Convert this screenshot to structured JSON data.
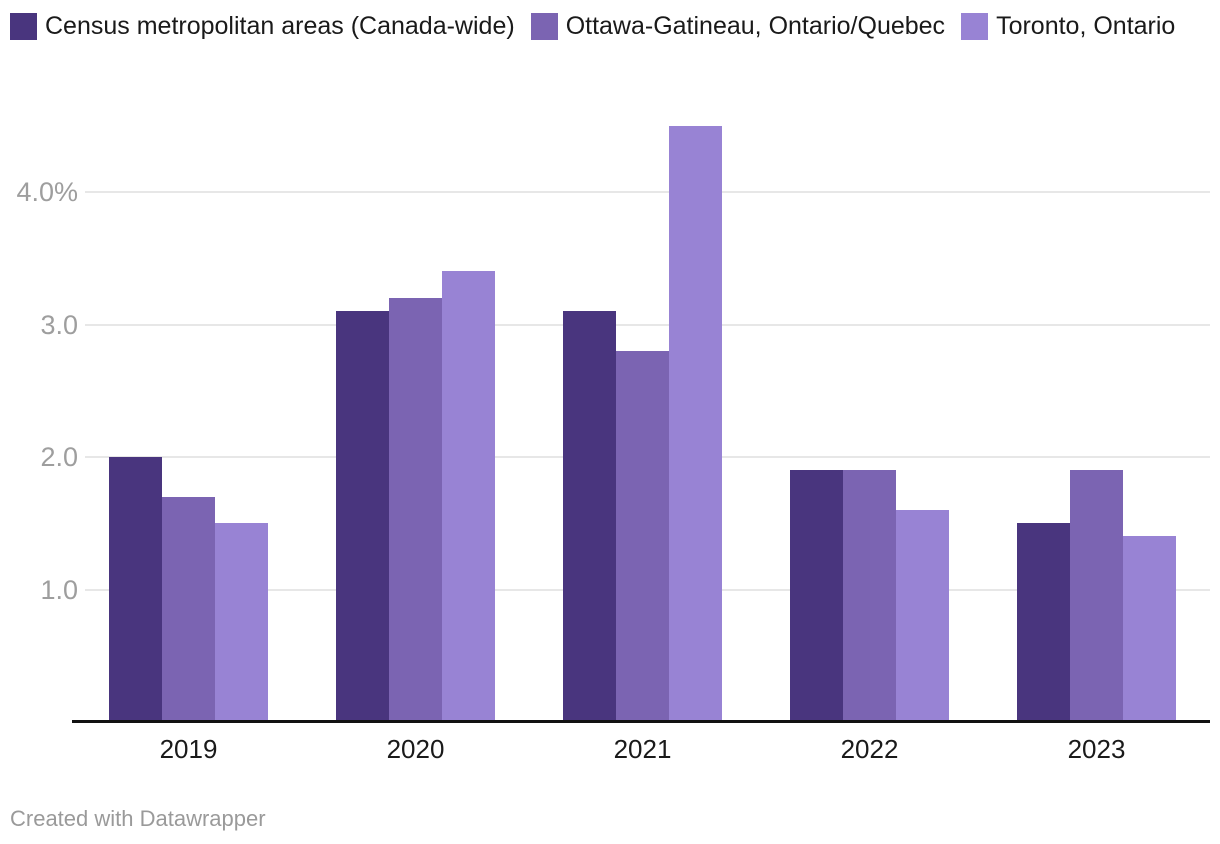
{
  "chart_data": {
    "type": "bar",
    "title": "",
    "categories": [
      "2019",
      "2020",
      "2021",
      "2022",
      "2023"
    ],
    "series": [
      {
        "name": "Census metropolitan areas (Canada-wide)",
        "color": "#49357e",
        "values": [
          2.0,
          3.1,
          3.1,
          1.9,
          1.5
        ]
      },
      {
        "name": "Ottawa-Gatineau, Ontario/Quebec",
        "color": "#7b64b2",
        "values": [
          1.7,
          3.2,
          2.8,
          1.9,
          1.9
        ]
      },
      {
        "name": "Toronto, Ontario",
        "color": "#9883d4",
        "values": [
          1.5,
          3.4,
          4.5,
          1.6,
          1.4
        ]
      }
    ],
    "xlabel": "",
    "ylabel": "",
    "ylim": [
      0,
      4.5
    ],
    "yticks": [
      {
        "value": 1,
        "label": "1.0"
      },
      {
        "value": 2,
        "label": "2.0"
      },
      {
        "value": 3,
        "label": "3.0"
      },
      {
        "value": 4,
        "label": "4.0%"
      }
    ],
    "grid": true,
    "legend_position": "top"
  },
  "footer": {
    "credit": "Created with Datawrapper"
  },
  "colors": {
    "axis_line": "#121212",
    "gridline": "#e7e7e7",
    "tick_label": "#9e9e9e",
    "category_label": "#1a1a1a",
    "legend_label": "#1a1a1a",
    "credit": "#9a9a9a",
    "background": "#ffffff"
  }
}
